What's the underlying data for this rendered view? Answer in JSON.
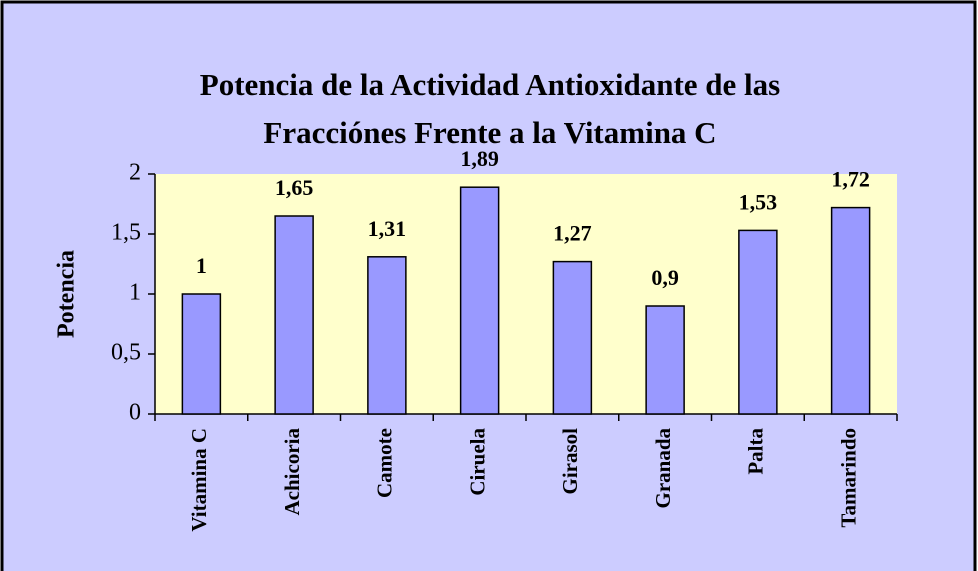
{
  "chart_data": {
    "type": "bar",
    "title": [
      "Potencia de la Actividad Antioxidante de las",
      "Fracciónes Frente a la Vitamina C"
    ],
    "y_label": "Potencia",
    "categories": [
      "Vitamina C",
      "Achicoria",
      "Camote",
      "Ciruela",
      "Girasol",
      "Granada",
      "Palta",
      "Tamarindo"
    ],
    "values": [
      1,
      1.65,
      1.31,
      1.89,
      1.27,
      0.9,
      1.53,
      1.72
    ],
    "value_labels": [
      "1",
      "1,65",
      "1,31",
      "1,89",
      "1,27",
      "0,9",
      "1,53",
      "1,72"
    ],
    "color": "#9999ff",
    "ylim": [
      0,
      2
    ],
    "yticks": [
      0,
      {
        "value": 0.5,
        "label": "0,5"
      },
      1,
      {
        "value": 1.5,
        "label": "1,5"
      },
      2
    ],
    "grid": false
  }
}
